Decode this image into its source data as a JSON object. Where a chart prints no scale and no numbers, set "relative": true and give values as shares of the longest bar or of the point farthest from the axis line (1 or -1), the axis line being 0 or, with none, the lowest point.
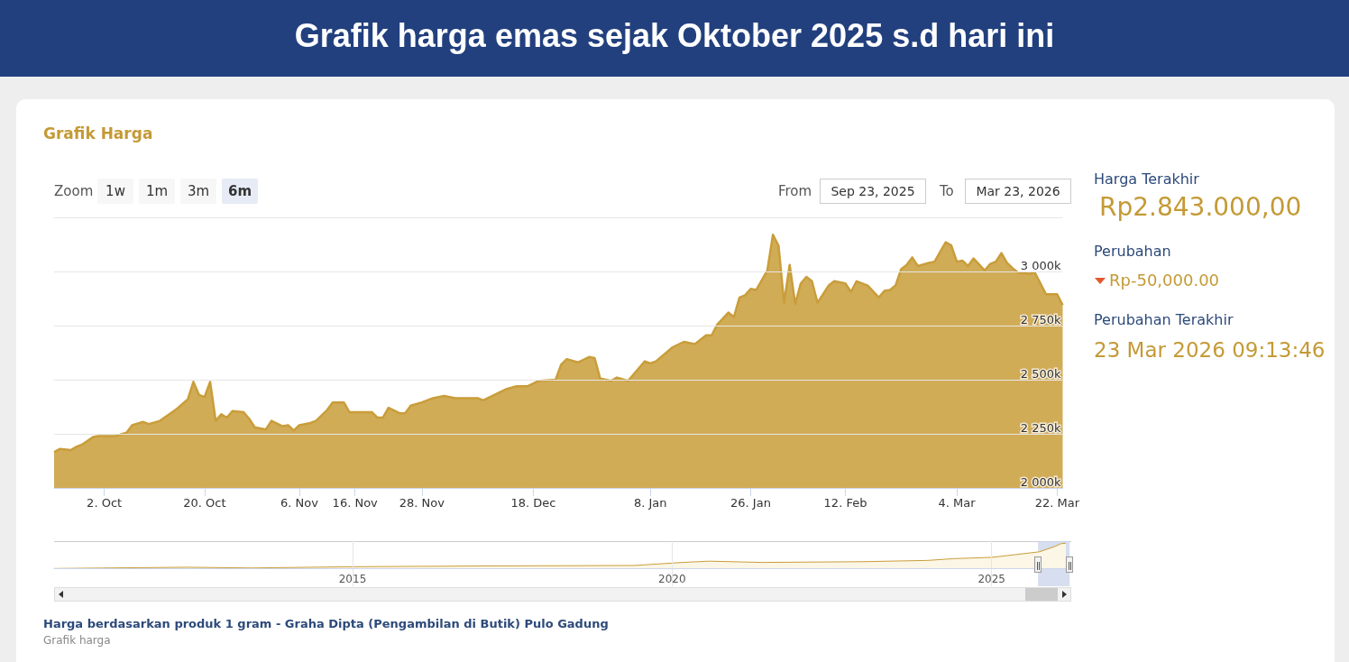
{
  "chart_data": [
    {
      "type": "area",
      "title": "Grafik harga emas sejak Oktober 2025 s.d hari ini",
      "subtitle": "Grafik Harga",
      "x": [
        "2025-09-23",
        "2025-09-24",
        "2025-09-26",
        "2025-09-27",
        "2025-09-28",
        "2025-09-30",
        "2025-10-01",
        "2025-10-04",
        "2025-10-06",
        "2025-10-07",
        "2025-10-09",
        "2025-10-10",
        "2025-10-12",
        "2025-10-15",
        "2025-10-17",
        "2025-10-18",
        "2025-10-19",
        "2025-10-20",
        "2025-10-21",
        "2025-10-22",
        "2025-10-23",
        "2025-10-24",
        "2025-10-25",
        "2025-10-27",
        "2025-10-28",
        "2025-10-29",
        "2025-10-31",
        "2025-11-01",
        "2025-11-03",
        "2025-11-04",
        "2025-11-05",
        "2025-11-06",
        "2025-11-08",
        "2025-11-09",
        "2025-11-10",
        "2025-11-11",
        "2025-11-12",
        "2025-11-14",
        "2025-11-15",
        "2025-11-19",
        "2025-11-20",
        "2025-11-21",
        "2025-11-22",
        "2025-11-24",
        "2025-11-25",
        "2025-11-26",
        "2025-11-28",
        "2025-11-30",
        "2025-12-02",
        "2025-12-04",
        "2025-12-08",
        "2025-12-09",
        "2025-12-11",
        "2025-12-13",
        "2025-12-15",
        "2025-12-17",
        "2025-12-19",
        "2025-12-22",
        "2025-12-23",
        "2025-12-24",
        "2025-12-26",
        "2025-12-28",
        "2025-12-29",
        "2025-12-30",
        "2025-12-31",
        "2026-01-01",
        "2026-01-02",
        "2026-01-04",
        "2026-01-07",
        "2026-01-08",
        "2026-01-09",
        "2026-01-12",
        "2026-01-14",
        "2026-01-16",
        "2026-01-18",
        "2026-01-19",
        "2026-01-20",
        "2026-01-22",
        "2026-01-23",
        "2026-01-24",
        "2026-01-25",
        "2026-01-26",
        "2026-01-27",
        "2026-01-29",
        "2026-01-30",
        "2026-01-31",
        "2026-02-01",
        "2026-02-02",
        "2026-02-03",
        "2026-02-04",
        "2026-02-05",
        "2026-02-06",
        "2026-02-07",
        "2026-02-08",
        "2026-02-09",
        "2026-02-10",
        "2026-02-12",
        "2026-02-13",
        "2026-02-14",
        "2026-02-16",
        "2026-02-18",
        "2026-02-19",
        "2026-02-20",
        "2026-02-21",
        "2026-02-22",
        "2026-02-23",
        "2026-02-24",
        "2026-02-25",
        "2026-02-27",
        "2026-02-28",
        "2026-03-02",
        "2026-03-03",
        "2026-03-04",
        "2026-03-05",
        "2026-03-06",
        "2026-03-07",
        "2026-03-09",
        "2026-03-10",
        "2026-03-11",
        "2026-03-12",
        "2026-03-13",
        "2026-03-14",
        "2026-03-15",
        "2026-03-17",
        "2026-03-18",
        "2026-03-20",
        "2026-03-22",
        "2026-03-23"
      ],
      "values": [
        2165,
        2180,
        2175,
        2190,
        2200,
        2235,
        2240,
        2240,
        2255,
        2290,
        2305,
        2295,
        2310,
        2365,
        2410,
        2490,
        2430,
        2420,
        2490,
        2310,
        2340,
        2325,
        2355,
        2350,
        2320,
        2280,
        2270,
        2310,
        2285,
        2290,
        2265,
        2290,
        2300,
        2310,
        2335,
        2360,
        2395,
        2395,
        2350,
        2350,
        2325,
        2325,
        2370,
        2345,
        2345,
        2380,
        2395,
        2415,
        2425,
        2415,
        2415,
        2405,
        2430,
        2455,
        2470,
        2470,
        2495,
        2500,
        2570,
        2595,
        2580,
        2605,
        2600,
        2505,
        2500,
        2495,
        2510,
        2495,
        2585,
        2575,
        2585,
        2650,
        2675,
        2665,
        2705,
        2705,
        2755,
        2810,
        2790,
        2880,
        2890,
        2920,
        2915,
        3005,
        3170,
        3120,
        2855,
        3030,
        2850,
        2945,
        2975,
        2955,
        2855,
        2895,
        2935,
        2955,
        2945,
        2905,
        2955,
        2935,
        2880,
        2910,
        2915,
        2935,
        3010,
        3030,
        3065,
        3025,
        3040,
        3045,
        3135,
        3120,
        3045,
        3050,
        3025,
        3060,
        3005,
        3035,
        3045,
        3085,
        3040,
        3015,
        2995,
        2990,
        2995,
        2895,
        2895,
        2845
      ],
      "color": "#c99d3a",
      "xlim": [
        "2025-09-23",
        "2026-03-23"
      ],
      "xticks": [
        {
          "value": "2025-10-02",
          "label": "2. Oct"
        },
        {
          "value": "2025-10-20",
          "label": "20. Oct"
        },
        {
          "value": "2025-11-06",
          "label": "6. Nov"
        },
        {
          "value": "2025-11-16",
          "label": "16. Nov"
        },
        {
          "value": "2025-11-28",
          "label": "28. Nov"
        },
        {
          "value": "2025-12-18",
          "label": "18. Dec"
        },
        {
          "value": "2026-01-08",
          "label": "8. Jan"
        },
        {
          "value": "2026-01-26",
          "label": "26. Jan"
        },
        {
          "value": "2026-02-12",
          "label": "12. Feb"
        },
        {
          "value": "2026-03-04",
          "label": "4. Mar"
        },
        {
          "value": "2026-03-22",
          "label": "22. Mar"
        }
      ],
      "ylim": [
        2000,
        3250
      ],
      "yticks": [
        {
          "value": 2000,
          "label": "2 000k"
        },
        {
          "value": 2250,
          "label": "2 250k"
        },
        {
          "value": 2500,
          "label": "2 500k"
        },
        {
          "value": 2750,
          "label": "2 750k"
        },
        {
          "value": 3000,
          "label": "3 000k"
        },
        {
          "value": 3250,
          "label": null
        }
      ],
      "grid": "y",
      "annotations": [
        "Zoom",
        "1w",
        "1m",
        "3m",
        "6m",
        "From",
        "Sep 23, 2025",
        "To",
        "Mar 23, 2026",
        "Harga berdasarkan produk 1 gram - Graha Dipta (Pengambilan di Butik) Pulo Gadung",
        "Grafik harga"
      ]
    },
    {
      "type": "area",
      "relative": true,
      "x": [
        "2010-05",
        "2012-06",
        "2013-06",
        "2015-01",
        "2017-01",
        "2019-06",
        "2020-03",
        "2020-08",
        "2021-06",
        "2023-01",
        "2024-01",
        "2024-06",
        "2025-01",
        "2025-06",
        "2025-10",
        "2026-01",
        "2026-02",
        "2026-03"
      ],
      "values": [
        0,
        0.05,
        0.02,
        0.07,
        0.1,
        0.12,
        0.24,
        0.29,
        0.24,
        0.27,
        0.32,
        0.39,
        0.44,
        0.56,
        0.66,
        0.88,
        0.98,
        1
      ],
      "color": "#c99d3a",
      "xlim": [
        "2010-05",
        "2026-04"
      ],
      "xticks": [
        {
          "value": "2015",
          "label": "2015"
        },
        {
          "value": "2020",
          "label": "2020"
        },
        {
          "value": "2025",
          "label": "2025"
        }
      ],
      "grid": "x",
      "bands": [
        {
          "axis": "x",
          "from": "2025-09-23",
          "to": "2026-03-23",
          "color": "#ccd6eb"
        }
      ]
    },
    {
      "type": "other",
      "annotations": [
        "Harga Terakhir",
        "Rp2.843.000,00",
        "Perubahan",
        "Rp-50,000.00",
        "Perubahan Terakhir",
        "23 Mar 2026 09:13:46"
      ]
    }
  ]
}
